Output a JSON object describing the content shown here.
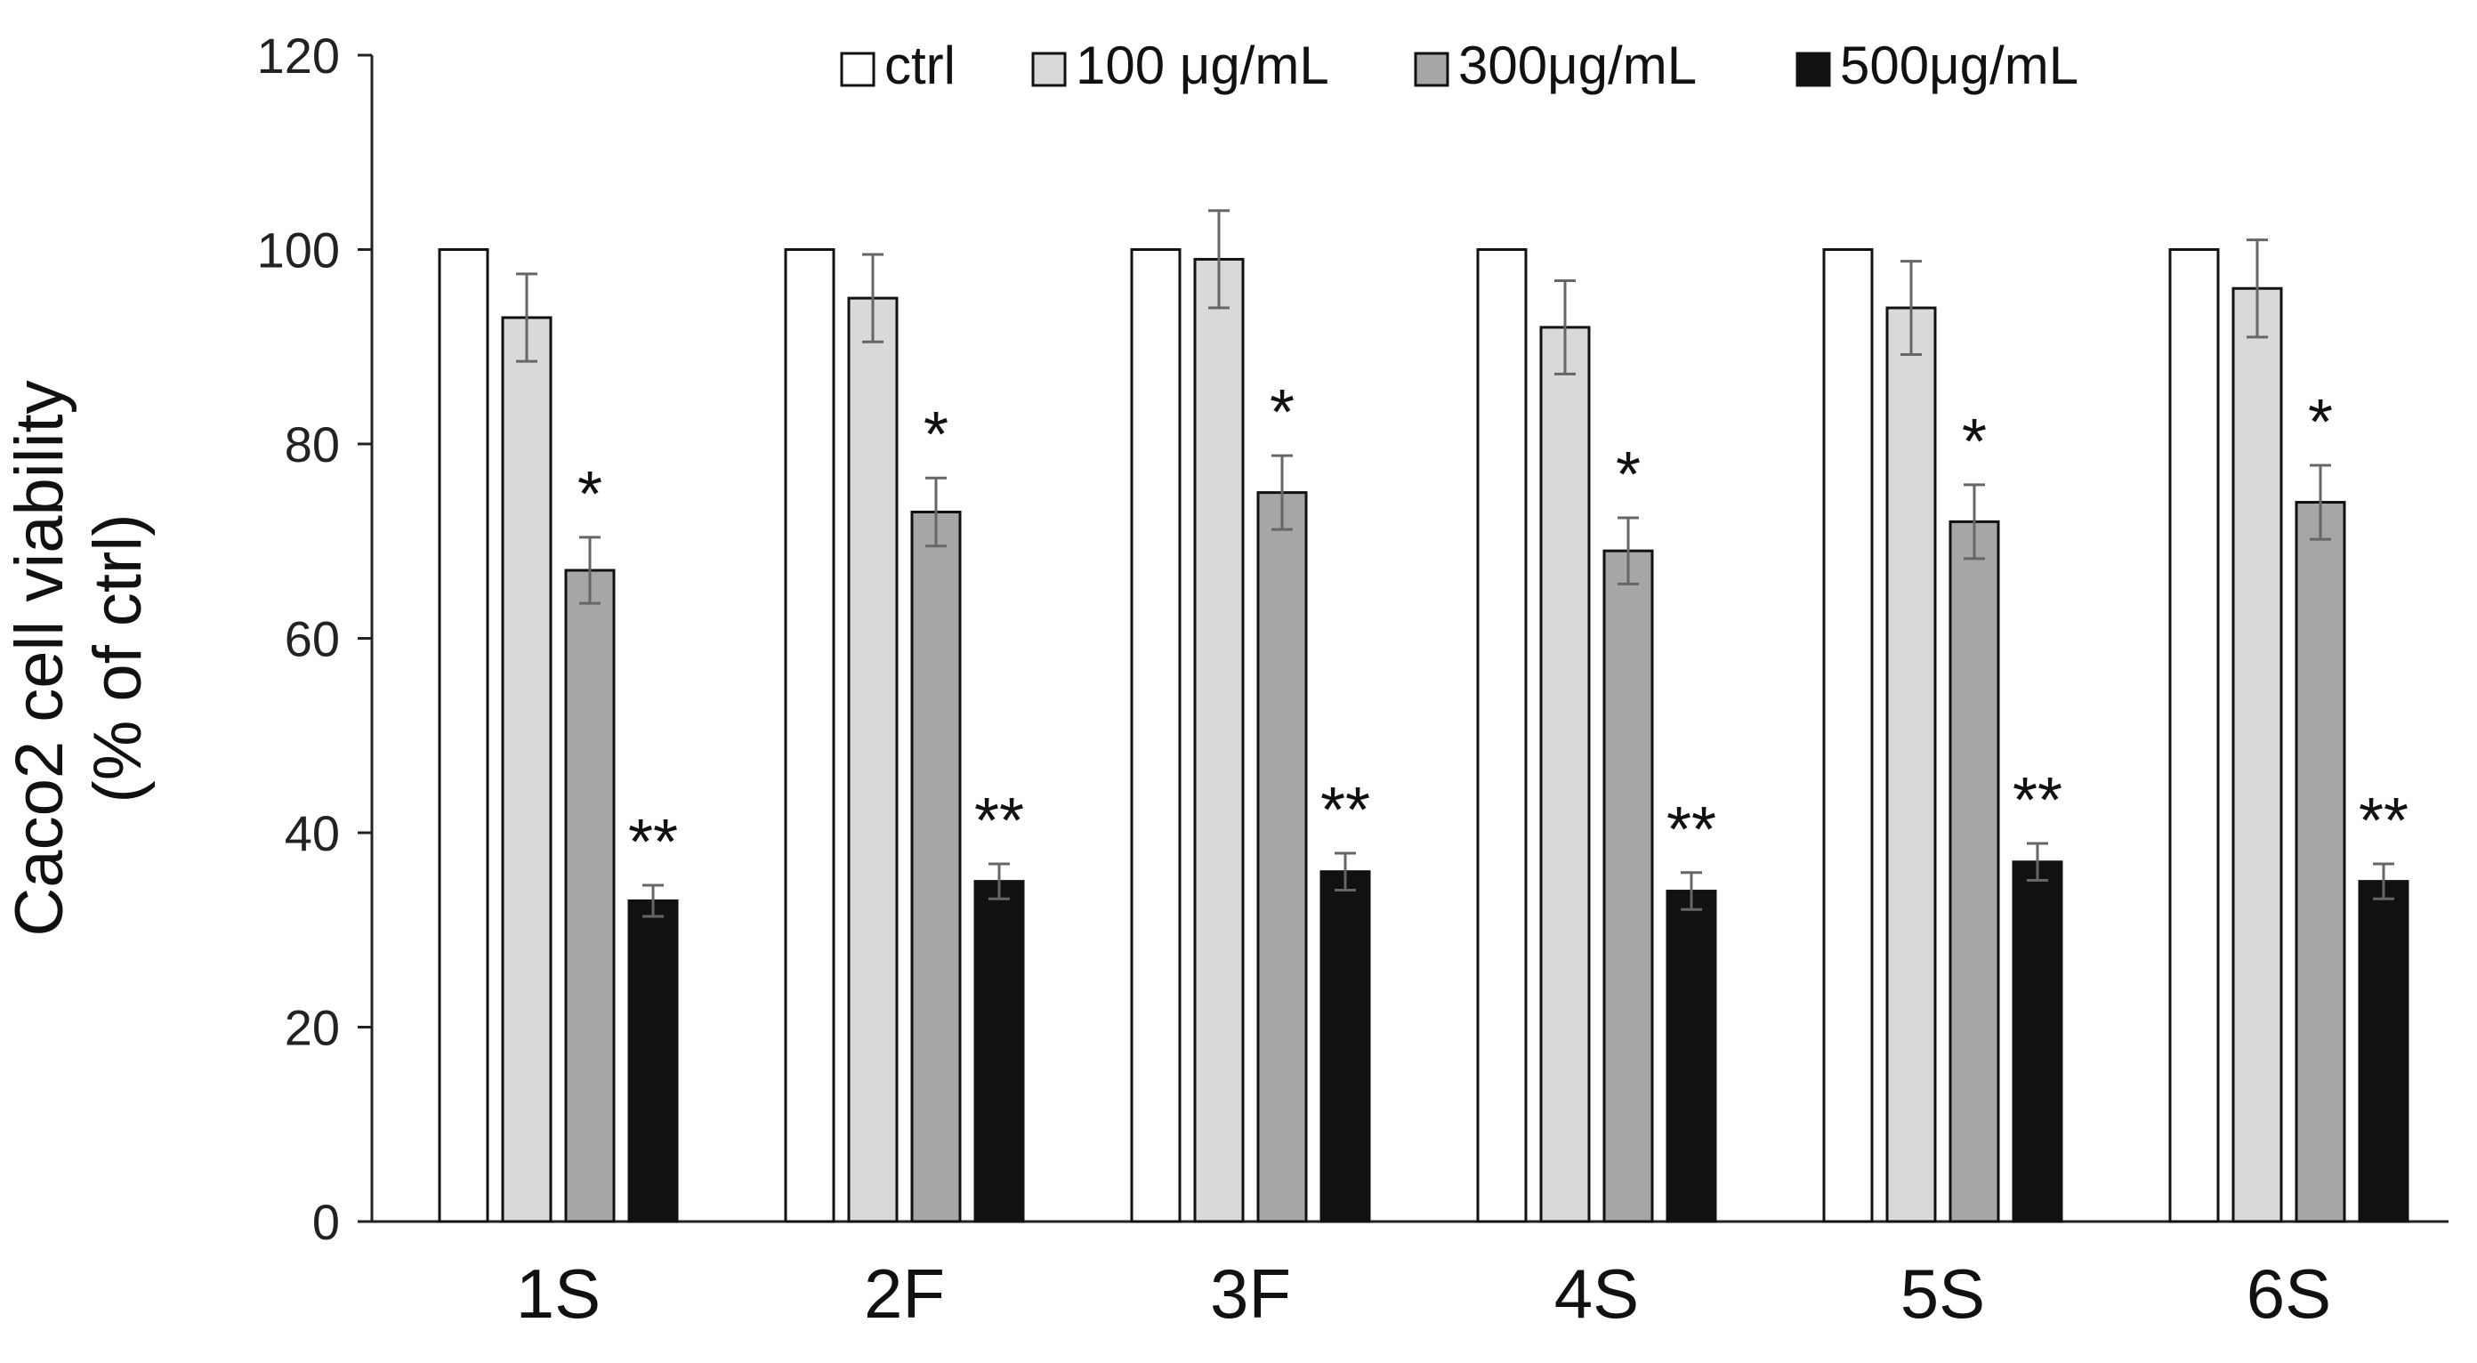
{
  "chart_data": {
    "type": "bar",
    "title": "",
    "xlabel": "",
    "ylabel_line1": "Caco2 cell viability",
    "ylabel_line2": "(% of ctrl)",
    "ylim": [
      0,
      120
    ],
    "yticks": [
      "0",
      "20",
      "40",
      "60",
      "80",
      "100",
      "120"
    ],
    "categories": [
      "1S",
      "2F",
      "3F",
      "4S",
      "5S",
      "6S"
    ],
    "legend_position": "top",
    "series": [
      {
        "name": "ctrl",
        "color": "#ffffff",
        "values": [
          100,
          100,
          100,
          100,
          100,
          100
        ],
        "errors": [
          0,
          0,
          0,
          0,
          0,
          0
        ],
        "sig": [
          "",
          "",
          "",
          "",
          "",
          ""
        ]
      },
      {
        "name": "100 μg/mL",
        "color": "#d9d9d9",
        "values": [
          93,
          95,
          99,
          92,
          94,
          96
        ],
        "errors": [
          4.5,
          4.5,
          5,
          4.8,
          4.8,
          5
        ],
        "sig": [
          "",
          "",
          "",
          "",
          "",
          ""
        ]
      },
      {
        "name": "300μg/mL",
        "color": "#a6a6a6",
        "values": [
          67,
          73,
          75,
          69,
          72,
          74
        ],
        "errors": [
          3.4,
          3.5,
          3.8,
          3.4,
          3.8,
          3.8
        ],
        "sig": [
          "*",
          "*",
          "*",
          "*",
          "*",
          "*"
        ]
      },
      {
        "name": "500μg/mL",
        "color": "#111111",
        "values": [
          33,
          35,
          36,
          34,
          37,
          35
        ],
        "errors": [
          1.6,
          1.8,
          1.9,
          1.9,
          1.9,
          1.8
        ],
        "sig": [
          "**",
          "**",
          "**",
          "**",
          "**",
          "**"
        ]
      }
    ]
  }
}
